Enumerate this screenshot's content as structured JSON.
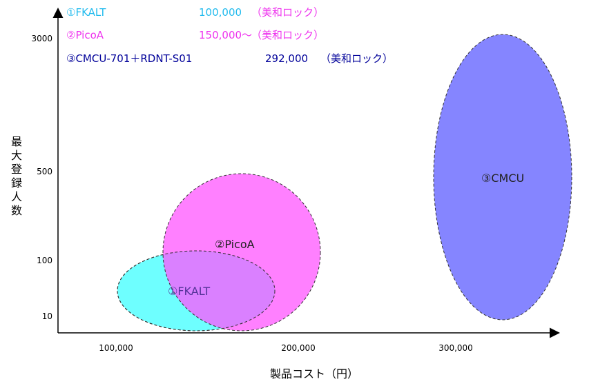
{
  "legend": [
    {
      "name": "①FKALT",
      "price": "100,000",
      "lock": "（美和ロック）",
      "color": "#33ccff"
    },
    {
      "name": "②PicoA",
      "price": "150,000～",
      "lock": "（美和ロック）",
      "color": "#ff55ff"
    },
    {
      "name": "③CMCU-701＋RDNT-S01",
      "price": "292,000",
      "lock": "（美和ロック）",
      "color": "#000099"
    }
  ],
  "y_axis": {
    "title": "最大登録人数",
    "ticks": [
      "3000",
      "500",
      "100",
      "10"
    ]
  },
  "x_axis": {
    "title": "製品コスト（円）",
    "ticks": [
      "100,000",
      "200,000",
      "300,000"
    ]
  },
  "blobs": [
    {
      "label": "①FKALT",
      "fill": "#55ffff",
      "opacity": 0.85
    },
    {
      "label": "②PicoA",
      "fill": "#ff55ff",
      "opacity": 0.75
    },
    {
      "label": "③CMCU",
      "fill": "#6666ff",
      "opacity": 0.8
    }
  ]
}
